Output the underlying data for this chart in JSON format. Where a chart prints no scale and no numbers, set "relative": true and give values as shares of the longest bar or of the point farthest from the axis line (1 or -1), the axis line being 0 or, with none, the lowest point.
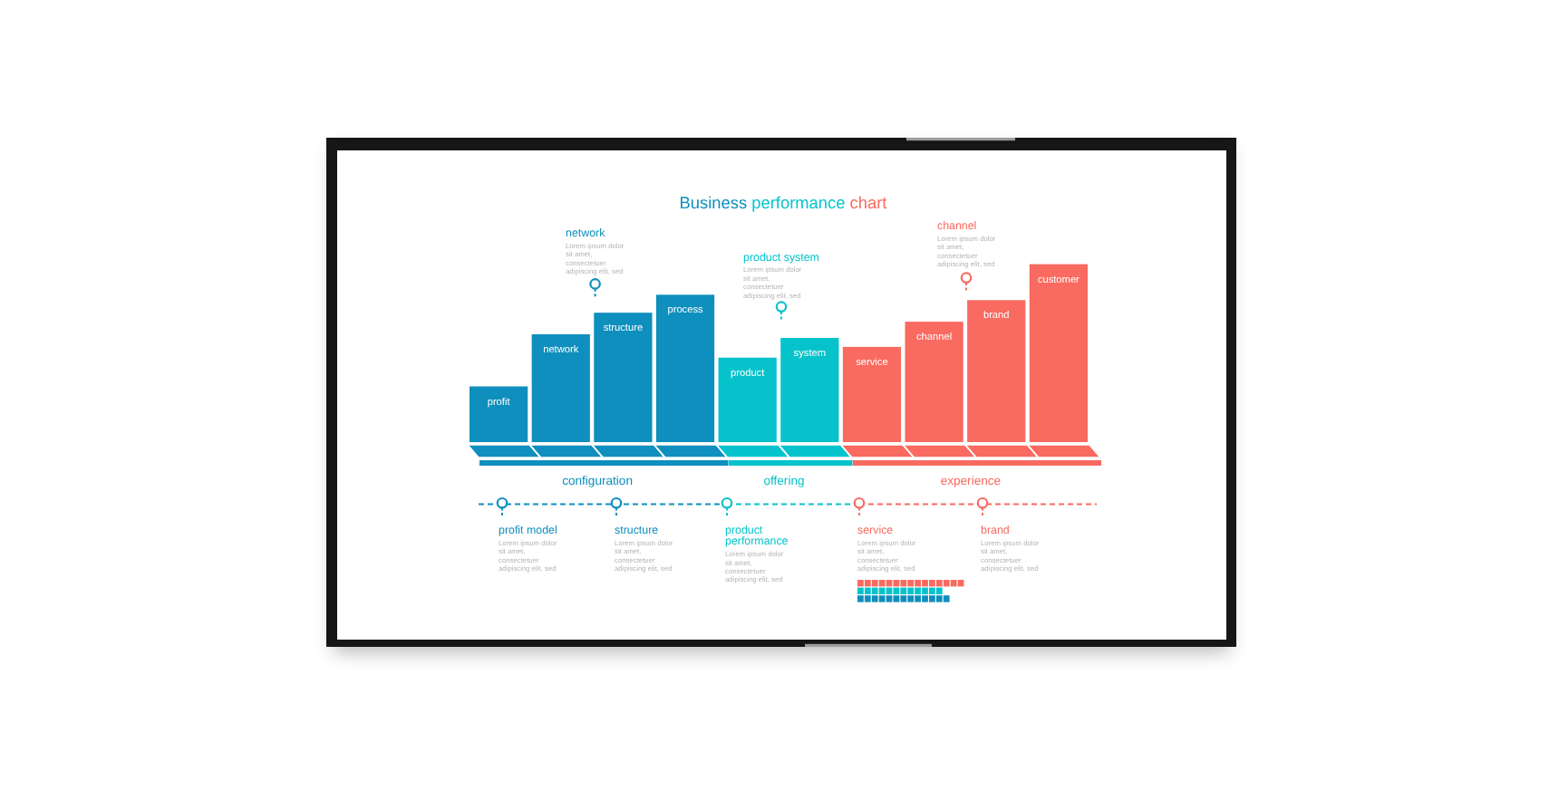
{
  "chart_data": {
    "type": "bar",
    "title": "Business performance chart",
    "relative": true,
    "stacked": true,
    "categories": [
      "profit",
      "network",
      "structure",
      "process",
      "product",
      "system",
      "service",
      "channel",
      "brand",
      "customer"
    ],
    "series": [
      {
        "name": "configuration",
        "color": "#0f8fbd",
        "values": [
          0.32,
          0.61,
          0.73,
          0.83,
          null,
          null,
          null,
          null,
          null,
          null
        ]
      },
      {
        "name": "offering",
        "color": "#06c3cb",
        "values": [
          null,
          null,
          null,
          null,
          0.48,
          0.59,
          null,
          null,
          null,
          null
        ]
      },
      {
        "name": "experience",
        "color": "#f96a60",
        "values": [
          null,
          null,
          null,
          null,
          null,
          null,
          0.54,
          0.68,
          0.8,
          1
        ]
      }
    ],
    "annotations": [
      "network",
      "Lorem ipsum dolor\nsit amet,\nconsectetuer\nadipiscing elit, sed",
      "product system",
      "Lorem ipsum dolor\nsit amet,\nconsectetuer\nadipiscing elit, sed",
      "channel",
      "Lorem ipsum dolor\nsit amet,\nconsectetuer\nadipiscing elit, sed",
      "profit model",
      "Lorem ipsum dolor\nsit amet,\nconsectetuer\nadipiscing elit, sed",
      "structure",
      "Lorem ipsum dolor\nsit amet,\nconsectetuer\nadipiscing elit, sed",
      "product\nperformance",
      "Lorem ipsum dolor\nsit amet,\nconsectetuer\nadipiscing elit, sed",
      "service",
      "Lorem ipsum dolor\nsit amet,\nconsectetuer\nadipiscing elit, sed",
      "brand",
      "Lorem ipsum dolor\nsit amet,\nconsectetuer\nadipiscing elit, sed"
    ]
  }
}
